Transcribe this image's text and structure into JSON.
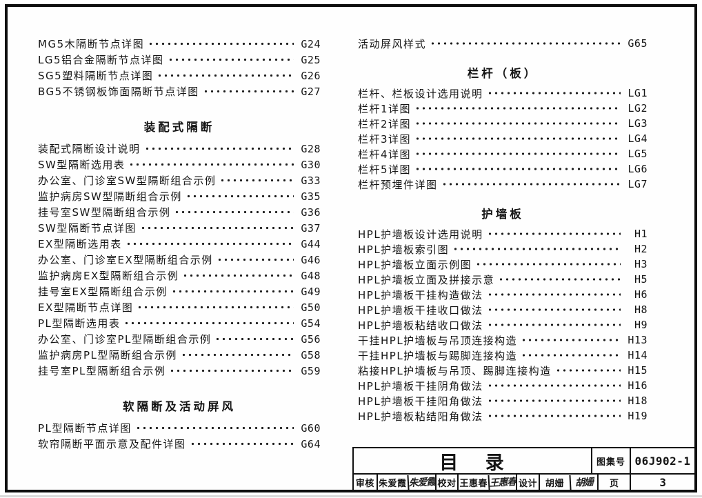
{
  "titleblock": {
    "title": "目 录",
    "atlas_label": "图集号",
    "atlas_no": "06J902-1",
    "page_label": "页",
    "page_no": "3",
    "staff": [
      {
        "role": "审核",
        "name": "朱爱霞",
        "signature": "朱爱霞"
      },
      {
        "role": "校对",
        "name": "王惠春",
        "signature": "王惠春"
      },
      {
        "role": "设计",
        "name": "胡姗",
        "signature": "胡姗"
      }
    ]
  },
  "toc": {
    "columns": [
      {
        "blocks": [
          {
            "heading": null,
            "items": [
              {
                "title": "MG5木隔断节点详图",
                "code": "G24"
              },
              {
                "title": "LG5铝合金隔断节点详图",
                "code": "G25"
              },
              {
                "title": "SG5塑料隔断节点详图",
                "code": "G26"
              },
              {
                "title": "BG5不锈钢板饰面隔断节点详图",
                "code": "G27"
              }
            ]
          },
          {
            "heading": "装配式隔断",
            "items": [
              {
                "title": "装配式隔断设计说明",
                "code": "G28"
              },
              {
                "title": "SW型隔断选用表",
                "code": "G30"
              },
              {
                "title": "办公室、门诊室SW型隔断组合示例",
                "code": "G33"
              },
              {
                "title": "监护病房SW型隔断组合示例",
                "code": "G35"
              },
              {
                "title": "挂号室SW型隔断组合示例",
                "code": "G36"
              },
              {
                "title": "SW型隔断节点详图",
                "code": "G37"
              },
              {
                "title": "EX型隔断选用表",
                "code": "G44"
              },
              {
                "title": "办公室、门诊室EX型隔断组合示例",
                "code": "G46"
              },
              {
                "title": "监护病房EX型隔断组合示例",
                "code": "G48"
              },
              {
                "title": "挂号室EX型隔断组合示例",
                "code": "G49"
              },
              {
                "title": "EX型隔断节点详图",
                "code": "G50"
              },
              {
                "title": "PL型隔断选用表",
                "code": "G54"
              },
              {
                "title": "办公室、门诊室PL型隔断组合示例",
                "code": "G56"
              },
              {
                "title": "监护病房PL型隔断组合示例",
                "code": "G58"
              },
              {
                "title": "挂号室PL型隔断组合示例",
                "code": "G59"
              }
            ]
          },
          {
            "heading": "软隔断及活动屏风",
            "items": [
              {
                "title": "PL型隔断节点详图",
                "code": "G60"
              },
              {
                "title": "软帘隔断平面示意及配件详图",
                "code": "G64"
              }
            ]
          }
        ]
      },
      {
        "blocks": [
          {
            "heading": null,
            "items": [
              {
                "title": "活动屏风样式",
                "code": "G65"
              }
            ]
          },
          {
            "heading": "栏杆（板）",
            "items": [
              {
                "title": "栏杆、栏板设计选用说明",
                "code": "LG1"
              },
              {
                "title": "栏杆1详图",
                "code": "LG2"
              },
              {
                "title": "栏杆2详图",
                "code": "LG3"
              },
              {
                "title": "栏杆3详图",
                "code": "LG4"
              },
              {
                "title": "栏杆4详图",
                "code": "LG5"
              },
              {
                "title": "栏杆5详图",
                "code": "LG6"
              },
              {
                "title": "栏杆预埋件详图",
                "code": "LG7"
              }
            ]
          },
          {
            "heading": "护墙板",
            "items": [
              {
                "title": "HPL护墙板设计选用说明",
                "code": "H1"
              },
              {
                "title": "HPL护墙板索引图",
                "code": "H2"
              },
              {
                "title": "HPL护墙板立面示例图",
                "code": "H3"
              },
              {
                "title": "HPL护墙板立面及拼接示意",
                "code": "H5"
              },
              {
                "title": "HPL护墙板干挂构造做法",
                "code": "H6"
              },
              {
                "title": "HPL护墙板干挂收口做法",
                "code": "H8"
              },
              {
                "title": "HPL护墙板粘结收口做法",
                "code": "H9"
              },
              {
                "title": "干挂HPL护墙板与吊顶连接构造",
                "code": "H13"
              },
              {
                "title": "干挂HPL护墙板与踢脚连接构造",
                "code": "H14"
              },
              {
                "title": "粘接HPL护墙板与吊顶、踢脚连接构造",
                "code": "H15"
              },
              {
                "title": "HPL护墙板干挂阴角做法",
                "code": "H16"
              },
              {
                "title": "HPL护墙板干挂阳角做法",
                "code": "H18"
              },
              {
                "title": "HPL护墙板粘结阳角做法",
                "code": "H19"
              }
            ]
          }
        ]
      }
    ]
  }
}
